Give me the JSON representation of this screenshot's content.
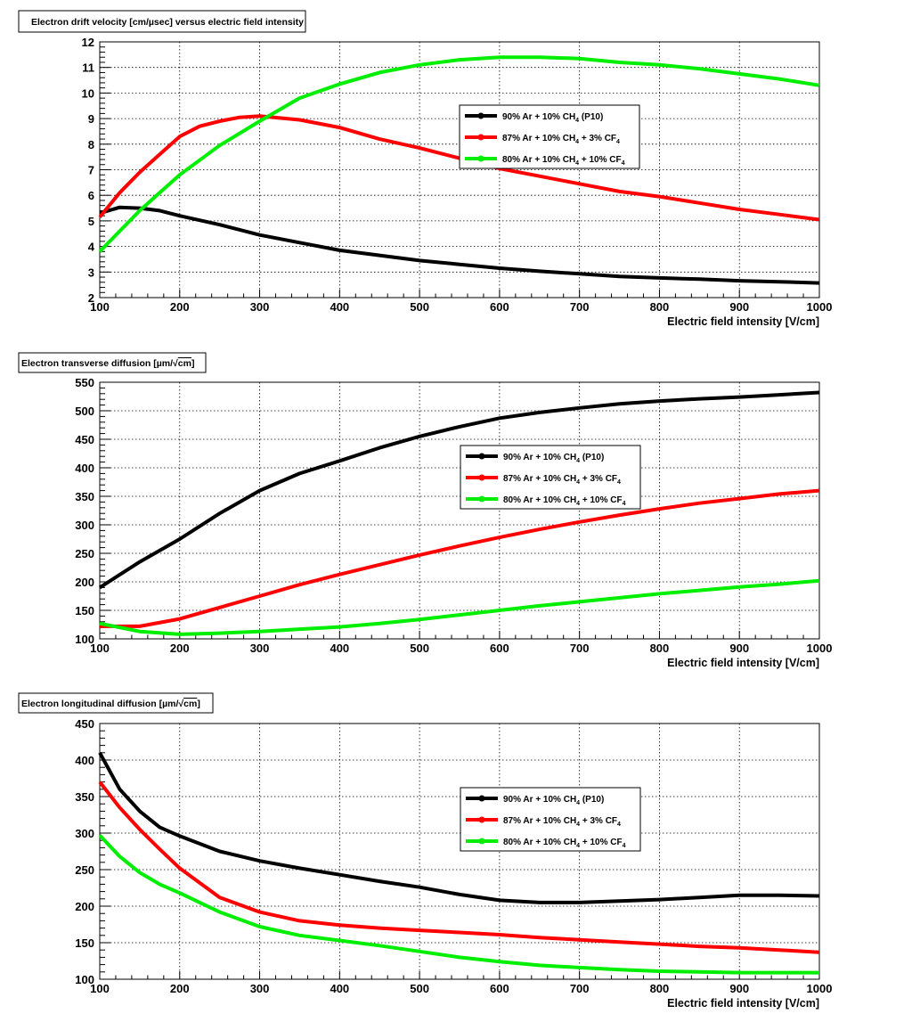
{
  "chart_data": [
    {
      "type": "line",
      "title": "Electron drift velocity [cm/µsec] versus electric field intensity",
      "xlabel": "Electric field intensity [V/cm]",
      "ylabel": "",
      "xlim": [
        100,
        1000
      ],
      "ylim": [
        2,
        12
      ],
      "x_ticks": [
        "100",
        "200",
        "300",
        "400",
        "500",
        "600",
        "700",
        "800",
        "900",
        "1000"
      ],
      "y_ticks": [
        "2",
        "3",
        "4",
        "5",
        "6",
        "7",
        "8",
        "9",
        "10",
        "11",
        "12"
      ],
      "grid": true,
      "legend_position": "upper-right",
      "series": [
        {
          "name_main": "90% Ar + 10% CH",
          "name_sub": "4",
          "name_tail": " (P10)",
          "color": "#000000",
          "x": [
            100,
            125,
            150,
            175,
            200,
            250,
            300,
            350,
            400,
            450,
            500,
            550,
            600,
            650,
            700,
            750,
            800,
            850,
            900,
            950,
            1000
          ],
          "y": [
            5.3,
            5.53,
            5.5,
            5.4,
            5.2,
            4.85,
            4.45,
            4.15,
            3.85,
            3.65,
            3.45,
            3.3,
            3.15,
            3.03,
            2.93,
            2.83,
            2.77,
            2.72,
            2.66,
            2.62,
            2.57
          ]
        },
        {
          "name_main": "87% Ar + 10% CH",
          "name_sub": "4",
          "name_tail": " + 3% CF",
          "name_sub2": "4",
          "color": "#ff0000",
          "x": [
            100,
            125,
            150,
            175,
            200,
            225,
            250,
            275,
            300,
            350,
            400,
            450,
            500,
            550,
            600,
            650,
            700,
            750,
            800,
            850,
            900,
            950,
            1000
          ],
          "y": [
            5.15,
            6.1,
            6.9,
            7.6,
            8.3,
            8.7,
            8.9,
            9.05,
            9.1,
            8.95,
            8.65,
            8.2,
            7.85,
            7.45,
            7.05,
            6.75,
            6.45,
            6.15,
            5.95,
            5.7,
            5.45,
            5.25,
            5.05
          ]
        },
        {
          "name_main": "80% Ar + 10% CH",
          "name_sub": "4",
          "name_tail": " + 10% CF",
          "name_sub2": "4",
          "color": "#00ee00",
          "x": [
            100,
            125,
            150,
            175,
            200,
            250,
            300,
            350,
            400,
            450,
            500,
            550,
            600,
            650,
            700,
            750,
            800,
            850,
            900,
            950,
            1000
          ],
          "y": [
            3.8,
            4.6,
            5.4,
            6.1,
            6.8,
            7.95,
            8.9,
            9.8,
            10.35,
            10.8,
            11.1,
            11.3,
            11.4,
            11.4,
            11.35,
            11.2,
            11.1,
            10.95,
            10.75,
            10.55,
            10.3
          ]
        }
      ]
    },
    {
      "type": "line",
      "title_main": "Electron transverse diffusion [µm/",
      "title_root": "cm",
      "title_tail": "]",
      "xlabel": "Electric field intensity [V/cm]",
      "ylabel": "",
      "xlim": [
        100,
        1000
      ],
      "ylim": [
        100,
        550
      ],
      "x_ticks": [
        "100",
        "200",
        "300",
        "400",
        "500",
        "600",
        "700",
        "800",
        "900",
        "1000"
      ],
      "y_ticks": [
        "100",
        "150",
        "200",
        "250",
        "300",
        "350",
        "400",
        "450",
        "500",
        "550"
      ],
      "grid": true,
      "legend_position": "center-right",
      "series": [
        {
          "name_main": "90% Ar + 10% CH",
          "name_sub": "4",
          "name_tail": " (P10)",
          "color": "#000000",
          "x": [
            100,
            150,
            200,
            250,
            300,
            350,
            400,
            450,
            500,
            550,
            600,
            650,
            700,
            750,
            800,
            850,
            900,
            950,
            1000
          ],
          "y": [
            190,
            235,
            275,
            320,
            360,
            390,
            412,
            435,
            455,
            472,
            487,
            497,
            505,
            512,
            517,
            521,
            524,
            528,
            532
          ]
        },
        {
          "name_main": "87% Ar + 10% CH",
          "name_sub": "4",
          "name_tail": " + 3% CF",
          "name_sub2": "4",
          "color": "#ff0000",
          "x": [
            100,
            150,
            200,
            250,
            300,
            350,
            400,
            450,
            500,
            550,
            600,
            650,
            700,
            750,
            800,
            850,
            900,
            950,
            1000
          ],
          "y": [
            122,
            122,
            135,
            155,
            175,
            195,
            213,
            230,
            247,
            263,
            278,
            292,
            305,
            317,
            328,
            338,
            346,
            354,
            360
          ]
        },
        {
          "name_main": "80% Ar + 10% CH",
          "name_sub": "4",
          "name_tail": " + 10% CF",
          "name_sub2": "4",
          "color": "#00ee00",
          "x": [
            100,
            150,
            200,
            250,
            300,
            350,
            400,
            450,
            500,
            550,
            600,
            650,
            700,
            750,
            800,
            850,
            900,
            950,
            1000
          ],
          "y": [
            127,
            113,
            108,
            110,
            113,
            117,
            121,
            127,
            134,
            142,
            150,
            158,
            165,
            172,
            179,
            185,
            191,
            196,
            202
          ]
        }
      ]
    },
    {
      "type": "line",
      "title_main": "Electron longitudinal diffusion [µm/",
      "title_root": "cm",
      "title_tail": "]",
      "xlabel": "Electric field intensity [V/cm]",
      "ylabel": "",
      "xlim": [
        100,
        1000
      ],
      "ylim": [
        100,
        450
      ],
      "x_ticks": [
        "100",
        "200",
        "300",
        "400",
        "500",
        "600",
        "700",
        "800",
        "900",
        "1000"
      ],
      "y_ticks": [
        "100",
        "150",
        "200",
        "250",
        "300",
        "350",
        "400",
        "450"
      ],
      "grid": true,
      "legend_position": "center-right",
      "series": [
        {
          "name_main": "90% Ar + 10% CH",
          "name_sub": "4",
          "name_tail": " (P10)",
          "color": "#000000",
          "x": [
            100,
            125,
            150,
            175,
            200,
            250,
            300,
            350,
            400,
            450,
            500,
            550,
            600,
            650,
            700,
            750,
            800,
            850,
            900,
            950,
            1000
          ],
          "y": [
            410,
            360,
            330,
            308,
            296,
            275,
            262,
            252,
            243,
            234,
            226,
            216,
            208,
            205,
            205,
            207,
            209,
            212,
            215,
            215,
            214
          ]
        },
        {
          "name_main": "87% Ar + 10% CH",
          "name_sub": "4",
          "name_tail": " + 3% CF",
          "name_sub2": "4",
          "color": "#ff0000",
          "x": [
            100,
            125,
            150,
            175,
            200,
            250,
            300,
            350,
            400,
            450,
            500,
            550,
            600,
            650,
            700,
            750,
            800,
            850,
            900,
            950,
            1000
          ],
          "y": [
            370,
            335,
            305,
            278,
            252,
            212,
            192,
            180,
            174,
            170,
            167,
            164,
            161,
            157,
            154,
            151,
            148,
            145,
            143,
            140,
            137
          ]
        },
        {
          "name_main": "80% Ar + 10% CH",
          "name_sub": "4",
          "name_tail": " + 10% CF",
          "name_sub2": "4",
          "color": "#00ee00",
          "x": [
            100,
            125,
            150,
            175,
            200,
            250,
            300,
            350,
            400,
            450,
            500,
            550,
            600,
            650,
            700,
            750,
            800,
            850,
            900,
            950,
            1000
          ],
          "y": [
            297,
            268,
            246,
            230,
            218,
            192,
            172,
            160,
            153,
            146,
            138,
            130,
            124,
            119,
            116,
            113,
            111,
            110,
            109,
            109,
            109
          ]
        }
      ]
    }
  ]
}
